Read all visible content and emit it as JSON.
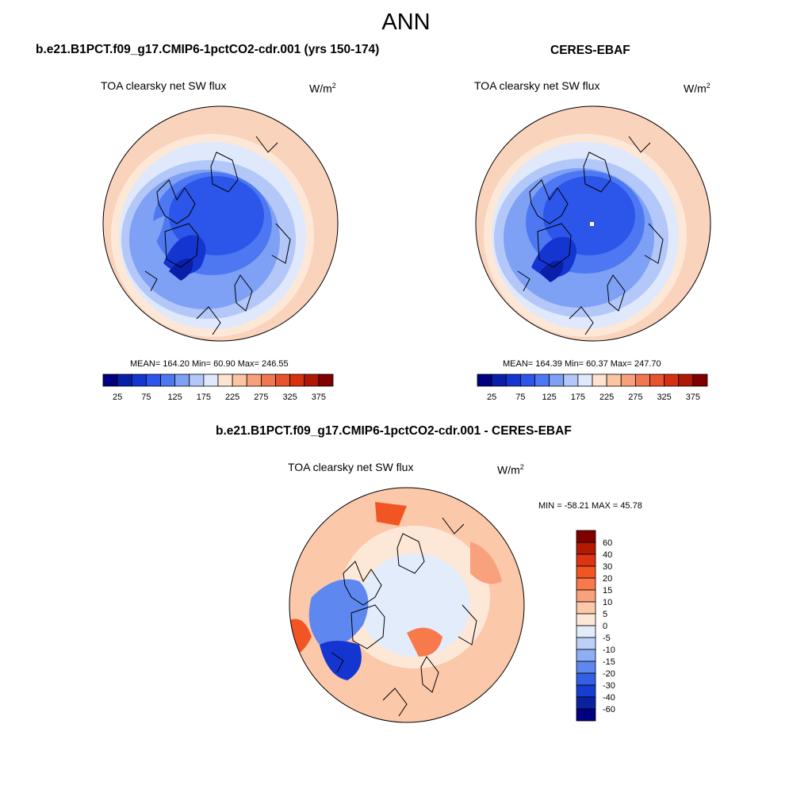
{
  "main_title": "ANN",
  "panels": [
    {
      "title": "b.e21.B1PCT.f09_g17.CMIP6-1pctCO2-cdr.001 (yrs 150-174)",
      "variable": "TOA clearsky net SW flux",
      "units": "W/m",
      "units_sup": "2",
      "stats": "MEAN= 164.20  Min=  60.90  Max= 246.55"
    },
    {
      "title": "CERES-EBAF",
      "variable": "TOA clearsky net SW flux",
      "units": "W/m",
      "units_sup": "2",
      "stats": "MEAN= 164.39  Min=  60.37  Max= 247.70"
    },
    {
      "title": "b.e21.B1PCT.f09_g17.CMIP6-1pctCO2-cdr.001 - CERES-EBAF",
      "variable": "TOA clearsky net SW flux",
      "units": "W/m",
      "units_sup": "2",
      "stats": "MIN = -58.21 MAX =  45.78"
    }
  ],
  "colorbar_top": {
    "labels": [
      "25",
      "75",
      "125",
      "175",
      "225",
      "275",
      "325",
      "375"
    ],
    "colors": [
      "#000080",
      "#0a1fa8",
      "#1535d0",
      "#2c55ea",
      "#4d78f2",
      "#7ea0f5",
      "#b3c8f8",
      "#dfe9fb",
      "#fde3d0",
      "#fbc4a2",
      "#f7a07c",
      "#f17753",
      "#e9522f",
      "#d6300f",
      "#b01806",
      "#800000"
    ]
  },
  "colorbar_diff": {
    "labels": [
      "60",
      "40",
      "30",
      "20",
      "15",
      "10",
      "5",
      "0",
      "-5",
      "-10",
      "-15",
      "-20",
      "-30",
      "-40",
      "-60"
    ],
    "colors": [
      "#800000",
      "#b51a00",
      "#dd3412",
      "#f25524",
      "#f7794c",
      "#f9a07c",
      "#fbc8aa",
      "#fde8d8",
      "#e2ecfa",
      "#bcd0f8",
      "#8eaef5",
      "#5e88ef",
      "#3460e6",
      "#163cd0",
      "#0a22a0",
      "#000080"
    ]
  },
  "map_colors": {
    "border": "#000000",
    "coast": "#000000"
  }
}
